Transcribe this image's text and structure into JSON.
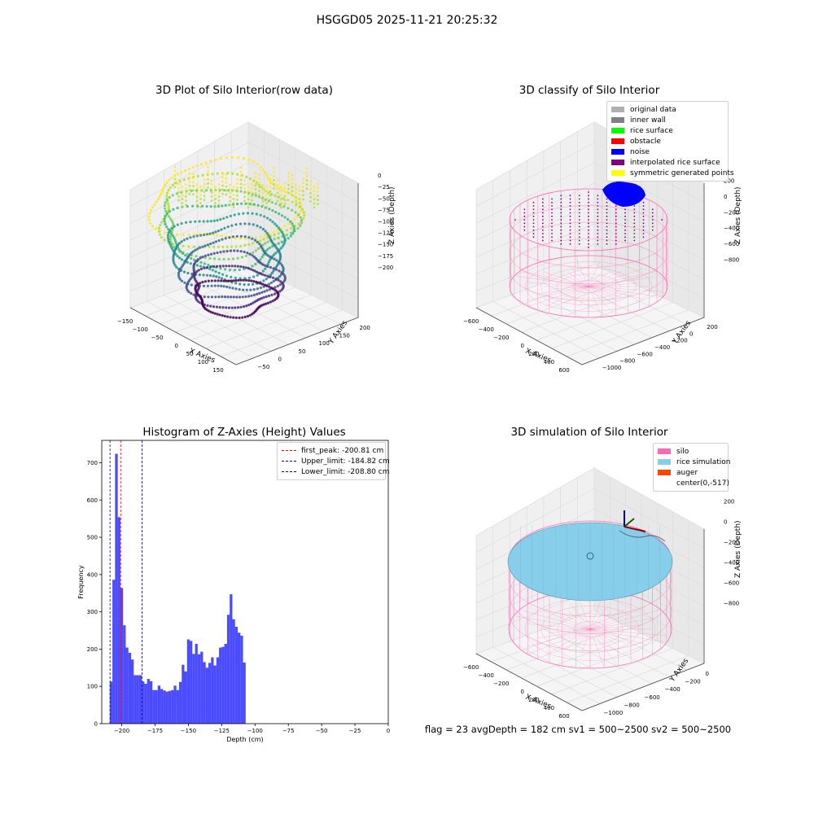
{
  "suptitle": "HSGGD05 2025-11-21 20:25:32",
  "footer": "flag = 23  avgDepth = 182 cm  sv1 = 500~2500  sv2 = 500~2500",
  "chart_data": [
    {
      "type": "scatter",
      "title": "3D Plot of Silo Interior(row data)",
      "xlabel": "X Axies",
      "ylabel": "Y Axies",
      "zlabel": "Z Axies (Depth)",
      "x_ticks": [
        "−150",
        "−100",
        "−50",
        "0",
        "50",
        "100",
        "150"
      ],
      "y_ticks": [
        "−50",
        "0",
        "50",
        "100",
        "150",
        "200"
      ],
      "z_ticks": [
        "0",
        "−25",
        "−50",
        "−75",
        "−100",
        "−125",
        "−150",
        "−175",
        "−200"
      ],
      "colormap": "viridis"
    },
    {
      "type": "scatter",
      "title": "3D classify of Silo Interior",
      "xlabel": "X Axies",
      "ylabel": "Y Axies",
      "zlabel": "Z Axies (Depth)",
      "x_ticks": [
        "−600",
        "−400",
        "−200",
        "0",
        "200",
        "400",
        "600"
      ],
      "y_ticks": [
        "−1000",
        "−800",
        "−600",
        "−400",
        "−200",
        "0",
        "200"
      ],
      "z_ticks": [
        "200",
        "0",
        "−200",
        "−400",
        "−600",
        "−800"
      ],
      "legend": [
        {
          "label": "original data",
          "color": "#b0b0b0"
        },
        {
          "label": "inner wall",
          "color": "#808080"
        },
        {
          "label": "rice surface",
          "color": "#00ff00"
        },
        {
          "label": "obstacle",
          "color": "#ff0000"
        },
        {
          "label": "noise",
          "color": "#0000ff"
        },
        {
          "label": "interpolated rice surface",
          "color": "#800080"
        },
        {
          "label": "symmetric generated points",
          "color": "#ffff00"
        }
      ]
    },
    {
      "type": "bar",
      "title": "Histogram of Z-Axies (Height) Values",
      "xlabel": "Depth (cm)",
      "ylabel": "Frequency",
      "xlim": [
        -215,
        0
      ],
      "ylim": [
        0,
        760
      ],
      "x_ticks": [
        -200,
        -175,
        -150,
        -125,
        -100,
        -75,
        -50,
        -25,
        0
      ],
      "x_tick_labels": [
        "−200",
        "−175",
        "−150",
        "−125",
        "−100",
        "−75",
        "−50",
        "−25",
        "0"
      ],
      "y_ticks": [
        0,
        100,
        200,
        300,
        400,
        500,
        600,
        700
      ],
      "bin_start": -209,
      "bin_width": 2,
      "values": [
        113,
        386,
        724,
        554,
        364,
        264,
        204,
        190,
        172,
        130,
        130,
        130,
        113,
        107,
        120,
        114,
        90,
        90,
        102,
        93,
        89,
        86,
        88,
        90,
        102,
        90,
        112,
        158,
        140,
        226,
        222,
        187,
        214,
        186,
        193,
        165,
        150,
        163,
        178,
        156,
        178,
        204,
        206,
        214,
        292,
        347,
        280,
        260,
        244,
        236,
        164
      ],
      "bar_color": "#0000ff",
      "vlines": [
        {
          "x": -200.81,
          "label": "first_peak: -200.81 cm",
          "color": "#ff0000"
        },
        {
          "x": -184.82,
          "label": "Upper_limit: -184.82 cm",
          "color": "#0000bb"
        },
        {
          "x": -208.8,
          "label": "Lower_limit: -208.80 cm",
          "color": "#0000bb"
        }
      ],
      "legend_position": "top-right"
    },
    {
      "type": "scatter",
      "title": "3D simulation of Silo Interior",
      "xlabel": "X Axies",
      "ylabel": "Y Axies",
      "zlabel": "Z Axies (Depth)",
      "x_ticks": [
        "−600",
        "−400",
        "−200",
        "0",
        "200",
        "400",
        "600"
      ],
      "y_ticks": [
        "−1000",
        "−800",
        "−600",
        "−400",
        "−200",
        "0"
      ],
      "z_ticks": [
        "200",
        "0",
        "−200",
        "−400",
        "−600",
        "−800"
      ],
      "legend": [
        {
          "label": "silo",
          "color": "#ff69b4"
        },
        {
          "label": "rice simulation",
          "color": "#87ceeb"
        },
        {
          "label": "auger",
          "color": "#ff4500"
        },
        {
          "label": "center(0,-517)",
          "color": "none"
        }
      ]
    }
  ]
}
